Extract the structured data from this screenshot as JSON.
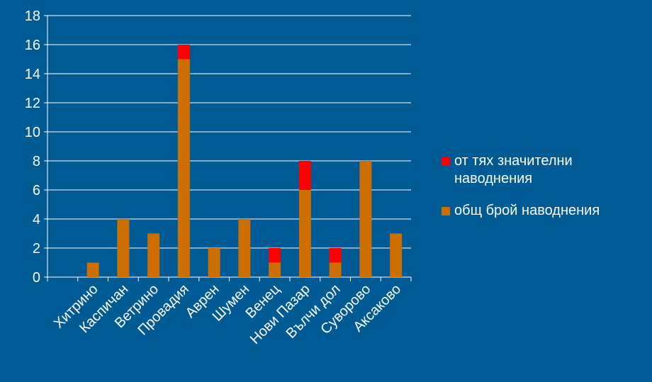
{
  "chart_data": {
    "type": "bar",
    "stacked": true,
    "categories": [
      "Хитрино",
      "Каспичан",
      "Ветрино",
      "Провадия",
      "Аврен",
      "Шумен",
      "Венец",
      "Нови Пазар",
      "Вълчи дол",
      "Суворово",
      "Аксаково"
    ],
    "series": [
      {
        "name": "общ брой наводнения",
        "values": [
          1,
          4,
          3,
          15,
          2,
          4,
          1,
          6,
          1,
          8,
          3
        ],
        "color": "#cc6f00"
      },
      {
        "name": "от тях значителни наводнения",
        "values": [
          0,
          0,
          0,
          1,
          0,
          0,
          1,
          2,
          1,
          0,
          0
        ],
        "color": "#ff0000"
      }
    ],
    "ylim": [
      0,
      18
    ],
    "yticks": [
      "0",
      "2",
      "4",
      "6",
      "8",
      "10",
      "12",
      "14",
      "16",
      "18"
    ],
    "grid": true,
    "legend_position": "right"
  },
  "legend": {
    "items": [
      {
        "label": "от тях значителни наводнения",
        "color": "#ff0000"
      },
      {
        "label": "общ брой наводнения",
        "color": "#cc6f00"
      }
    ]
  },
  "colors": {
    "background": "#005a93",
    "axis": "#ffffff"
  }
}
